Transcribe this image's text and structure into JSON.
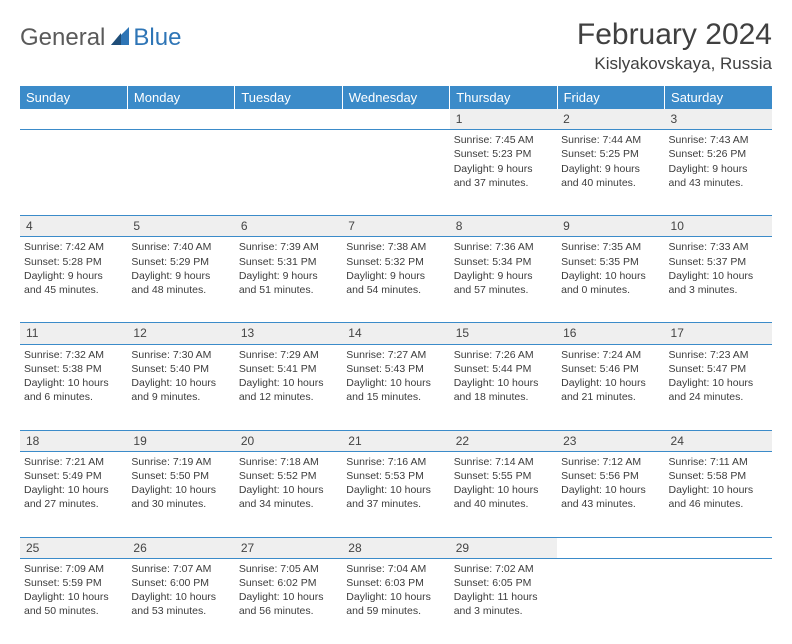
{
  "brand": {
    "general": "General",
    "blue": "Blue"
  },
  "title": "February 2024",
  "location": "Kislyakovskaya, Russia",
  "colors": {
    "header_bg": "#3b8bc9",
    "header_text": "#ffffff",
    "daynum_bg": "#efefef",
    "rule": "#3b8bc9",
    "text": "#3c3c3c",
    "brand_gray": "#5a5a5a",
    "brand_blue": "#2e75b6"
  },
  "weekdays": [
    "Sunday",
    "Monday",
    "Tuesday",
    "Wednesday",
    "Thursday",
    "Friday",
    "Saturday"
  ],
  "weeks": [
    [
      {
        "empty": true
      },
      {
        "empty": true
      },
      {
        "empty": true
      },
      {
        "empty": true
      },
      {
        "day": "1",
        "sunrise": "Sunrise: 7:45 AM",
        "sunset": "Sunset: 5:23 PM",
        "dl1": "Daylight: 9 hours",
        "dl2": "and 37 minutes."
      },
      {
        "day": "2",
        "sunrise": "Sunrise: 7:44 AM",
        "sunset": "Sunset: 5:25 PM",
        "dl1": "Daylight: 9 hours",
        "dl2": "and 40 minutes."
      },
      {
        "day": "3",
        "sunrise": "Sunrise: 7:43 AM",
        "sunset": "Sunset: 5:26 PM",
        "dl1": "Daylight: 9 hours",
        "dl2": "and 43 minutes."
      }
    ],
    [
      {
        "day": "4",
        "sunrise": "Sunrise: 7:42 AM",
        "sunset": "Sunset: 5:28 PM",
        "dl1": "Daylight: 9 hours",
        "dl2": "and 45 minutes."
      },
      {
        "day": "5",
        "sunrise": "Sunrise: 7:40 AM",
        "sunset": "Sunset: 5:29 PM",
        "dl1": "Daylight: 9 hours",
        "dl2": "and 48 minutes."
      },
      {
        "day": "6",
        "sunrise": "Sunrise: 7:39 AM",
        "sunset": "Sunset: 5:31 PM",
        "dl1": "Daylight: 9 hours",
        "dl2": "and 51 minutes."
      },
      {
        "day": "7",
        "sunrise": "Sunrise: 7:38 AM",
        "sunset": "Sunset: 5:32 PM",
        "dl1": "Daylight: 9 hours",
        "dl2": "and 54 minutes."
      },
      {
        "day": "8",
        "sunrise": "Sunrise: 7:36 AM",
        "sunset": "Sunset: 5:34 PM",
        "dl1": "Daylight: 9 hours",
        "dl2": "and 57 minutes."
      },
      {
        "day": "9",
        "sunrise": "Sunrise: 7:35 AM",
        "sunset": "Sunset: 5:35 PM",
        "dl1": "Daylight: 10 hours",
        "dl2": "and 0 minutes."
      },
      {
        "day": "10",
        "sunrise": "Sunrise: 7:33 AM",
        "sunset": "Sunset: 5:37 PM",
        "dl1": "Daylight: 10 hours",
        "dl2": "and 3 minutes."
      }
    ],
    [
      {
        "day": "11",
        "sunrise": "Sunrise: 7:32 AM",
        "sunset": "Sunset: 5:38 PM",
        "dl1": "Daylight: 10 hours",
        "dl2": "and 6 minutes."
      },
      {
        "day": "12",
        "sunrise": "Sunrise: 7:30 AM",
        "sunset": "Sunset: 5:40 PM",
        "dl1": "Daylight: 10 hours",
        "dl2": "and 9 minutes."
      },
      {
        "day": "13",
        "sunrise": "Sunrise: 7:29 AM",
        "sunset": "Sunset: 5:41 PM",
        "dl1": "Daylight: 10 hours",
        "dl2": "and 12 minutes."
      },
      {
        "day": "14",
        "sunrise": "Sunrise: 7:27 AM",
        "sunset": "Sunset: 5:43 PM",
        "dl1": "Daylight: 10 hours",
        "dl2": "and 15 minutes."
      },
      {
        "day": "15",
        "sunrise": "Sunrise: 7:26 AM",
        "sunset": "Sunset: 5:44 PM",
        "dl1": "Daylight: 10 hours",
        "dl2": "and 18 minutes."
      },
      {
        "day": "16",
        "sunrise": "Sunrise: 7:24 AM",
        "sunset": "Sunset: 5:46 PM",
        "dl1": "Daylight: 10 hours",
        "dl2": "and 21 minutes."
      },
      {
        "day": "17",
        "sunrise": "Sunrise: 7:23 AM",
        "sunset": "Sunset: 5:47 PM",
        "dl1": "Daylight: 10 hours",
        "dl2": "and 24 minutes."
      }
    ],
    [
      {
        "day": "18",
        "sunrise": "Sunrise: 7:21 AM",
        "sunset": "Sunset: 5:49 PM",
        "dl1": "Daylight: 10 hours",
        "dl2": "and 27 minutes."
      },
      {
        "day": "19",
        "sunrise": "Sunrise: 7:19 AM",
        "sunset": "Sunset: 5:50 PM",
        "dl1": "Daylight: 10 hours",
        "dl2": "and 30 minutes."
      },
      {
        "day": "20",
        "sunrise": "Sunrise: 7:18 AM",
        "sunset": "Sunset: 5:52 PM",
        "dl1": "Daylight: 10 hours",
        "dl2": "and 34 minutes."
      },
      {
        "day": "21",
        "sunrise": "Sunrise: 7:16 AM",
        "sunset": "Sunset: 5:53 PM",
        "dl1": "Daylight: 10 hours",
        "dl2": "and 37 minutes."
      },
      {
        "day": "22",
        "sunrise": "Sunrise: 7:14 AM",
        "sunset": "Sunset: 5:55 PM",
        "dl1": "Daylight: 10 hours",
        "dl2": "and 40 minutes."
      },
      {
        "day": "23",
        "sunrise": "Sunrise: 7:12 AM",
        "sunset": "Sunset: 5:56 PM",
        "dl1": "Daylight: 10 hours",
        "dl2": "and 43 minutes."
      },
      {
        "day": "24",
        "sunrise": "Sunrise: 7:11 AM",
        "sunset": "Sunset: 5:58 PM",
        "dl1": "Daylight: 10 hours",
        "dl2": "and 46 minutes."
      }
    ],
    [
      {
        "day": "25",
        "sunrise": "Sunrise: 7:09 AM",
        "sunset": "Sunset: 5:59 PM",
        "dl1": "Daylight: 10 hours",
        "dl2": "and 50 minutes."
      },
      {
        "day": "26",
        "sunrise": "Sunrise: 7:07 AM",
        "sunset": "Sunset: 6:00 PM",
        "dl1": "Daylight: 10 hours",
        "dl2": "and 53 minutes."
      },
      {
        "day": "27",
        "sunrise": "Sunrise: 7:05 AM",
        "sunset": "Sunset: 6:02 PM",
        "dl1": "Daylight: 10 hours",
        "dl2": "and 56 minutes."
      },
      {
        "day": "28",
        "sunrise": "Sunrise: 7:04 AM",
        "sunset": "Sunset: 6:03 PM",
        "dl1": "Daylight: 10 hours",
        "dl2": "and 59 minutes."
      },
      {
        "day": "29",
        "sunrise": "Sunrise: 7:02 AM",
        "sunset": "Sunset: 6:05 PM",
        "dl1": "Daylight: 11 hours",
        "dl2": "and 3 minutes."
      },
      {
        "empty": true
      },
      {
        "empty": true
      }
    ]
  ]
}
